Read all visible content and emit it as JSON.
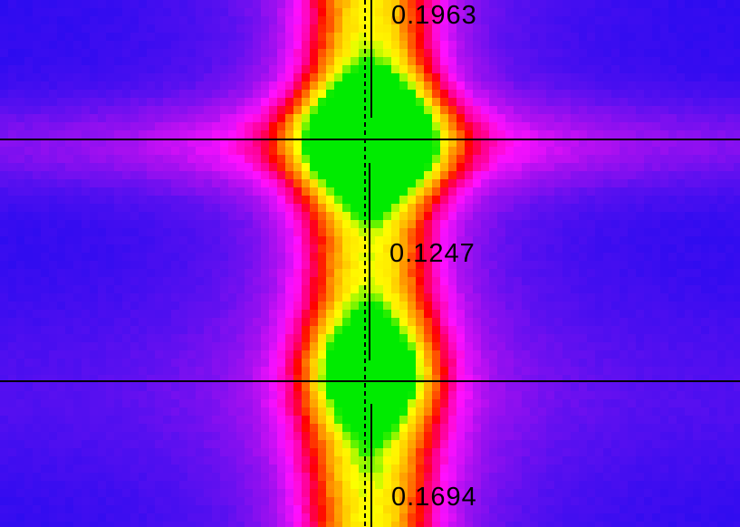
{
  "measurements": {
    "top": "0.1963",
    "middle": "0.1247",
    "bottom": "0.1694"
  },
  "colors": {
    "background": "#2a10ee",
    "cursor_lines": "#000000"
  },
  "legend_palette": [
    "#1b08f0",
    "#6a10f4",
    "#c010f0",
    "#ff10ff",
    "#ff0090",
    "#ff0000",
    "#ff7a00",
    "#ffd000",
    "#ffff00",
    "#00ff00"
  ]
}
